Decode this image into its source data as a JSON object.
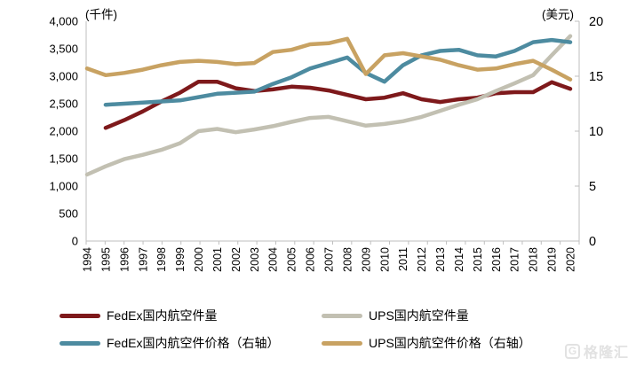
{
  "chart_data": {
    "type": "line",
    "title": "",
    "x_labels": [
      "1994",
      "1995",
      "1996",
      "1997",
      "1998",
      "1999",
      "2000",
      "2001",
      "2002",
      "2003",
      "2004",
      "2005",
      "2006",
      "2007",
      "2008",
      "2009",
      "2010",
      "2011",
      "2012",
      "2013",
      "2014",
      "2015",
      "2016",
      "2017",
      "2018",
      "2019",
      "2020"
    ],
    "left_axis": {
      "unit_label": "(千件)",
      "range": [
        0,
        4000
      ],
      "tick_labels": [
        "0",
        "500",
        "1,000",
        "1,500",
        "2,000",
        "2,500",
        "3,000",
        "3,500",
        "4,000"
      ],
      "tick_values": [
        0,
        500,
        1000,
        1500,
        2000,
        2500,
        3000,
        3500,
        4000
      ]
    },
    "right_axis": {
      "unit_label": "(美元)",
      "range": [
        0,
        20
      ],
      "tick_labels": [
        "0",
        "5",
        "10",
        "15",
        "20"
      ],
      "tick_values": [
        0,
        5,
        10,
        15,
        20
      ]
    },
    "grid": false,
    "legend_position": "bottom",
    "series": [
      {
        "id": "fedex-volume",
        "name": "FedEx国内航空件量",
        "axis": "left",
        "color": "#7E191B",
        "values": [
          null,
          2060,
          2200,
          2360,
          2540,
          2700,
          2900,
          2900,
          2780,
          2730,
          2760,
          2810,
          2790,
          2740,
          2660,
          2580,
          2610,
          2690,
          2580,
          2530,
          2580,
          2610,
          2690,
          2710,
          2710,
          2890,
          2770
        ]
      },
      {
        "id": "ups-volume",
        "name": "UPS国内航空件量",
        "axis": "left",
        "color": "#C2C0B2",
        "values": [
          1210,
          1360,
          1490,
          1570,
          1660,
          1780,
          2000,
          2040,
          1980,
          2030,
          2090,
          2170,
          2240,
          2260,
          2180,
          2100,
          2130,
          2180,
          2260,
          2370,
          2480,
          2580,
          2730,
          2870,
          3020,
          3380,
          3730
        ]
      },
      {
        "id": "fedex-price",
        "name": "FedEx国内航空件价格（右轴）",
        "axis": "right",
        "color": "#4D8BA0",
        "values": [
          null,
          12.4,
          12.5,
          12.6,
          12.7,
          12.8,
          13.1,
          13.4,
          13.5,
          13.6,
          14.3,
          14.9,
          15.7,
          16.2,
          16.7,
          15.3,
          14.5,
          16.0,
          16.9,
          17.3,
          17.4,
          16.9,
          16.8,
          17.3,
          18.1,
          18.3,
          18.1
        ]
      },
      {
        "id": "ups-price",
        "name": "UPS国内航空件价格（右轴）",
        "axis": "right",
        "color": "#C8A262",
        "values": [
          15.7,
          15.1,
          15.3,
          15.6,
          16.0,
          16.3,
          16.4,
          16.3,
          16.1,
          16.2,
          17.2,
          17.4,
          17.9,
          18.0,
          18.4,
          15.2,
          16.9,
          17.1,
          16.8,
          16.5,
          16.0,
          15.6,
          15.7,
          16.1,
          16.4,
          15.6,
          14.7
        ]
      }
    ],
    "axis_line_color": "#BFBFBF",
    "text_color": "#000000"
  },
  "watermark": {
    "logo_letter": "G",
    "text": "格隆汇"
  }
}
